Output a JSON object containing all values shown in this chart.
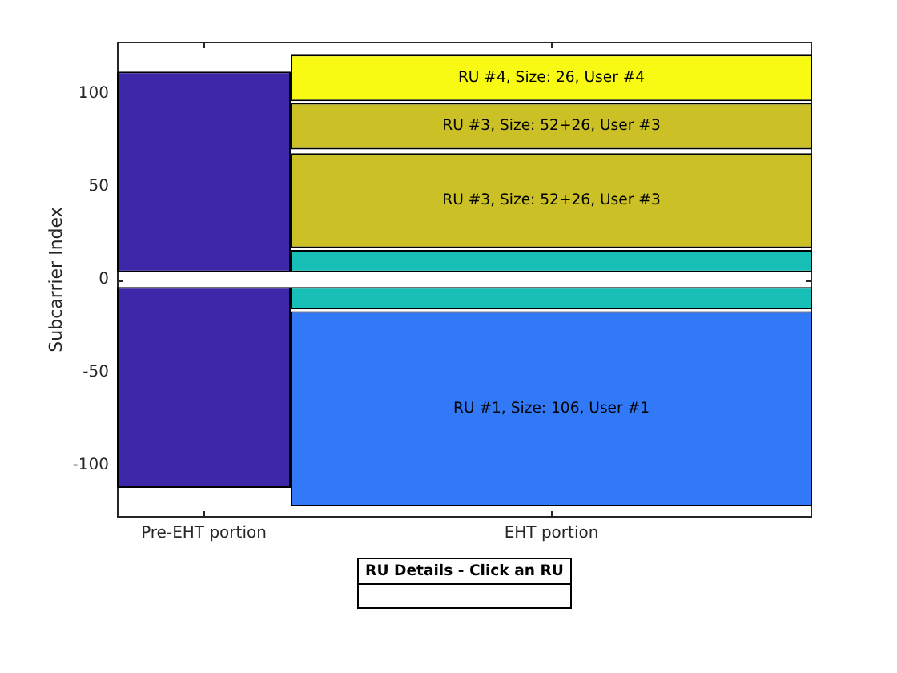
{
  "chart_data": {
    "type": "bar",
    "ylabel": "Subcarrier Index",
    "categories": [
      "Pre-EHT portion",
      "EHT portion"
    ],
    "series": [
      {
        "color": "#3e26a8",
        "base": [
          -112,
          null
        ],
        "values": [
          108,
          null
        ]
      },
      {
        "color": "#3e26a8",
        "base": [
          4,
          null
        ],
        "values": [
          108,
          null
        ]
      },
      {
        "name": "RU #1, Size: 106, User #1",
        "color": "#3279f7",
        "base": [
          null,
          -122
        ],
        "values": [
          null,
          105
        ]
      },
      {
        "color": "#17bfb6",
        "base": [
          null,
          -16
        ],
        "values": [
          null,
          12
        ]
      },
      {
        "color": "#17bfb6",
        "base": [
          null,
          4
        ],
        "values": [
          null,
          12
        ]
      },
      {
        "name": "RU #3, Size: 52+26, User #3",
        "color": "#cbc026",
        "base": [
          null,
          17
        ],
        "values": [
          null,
          51
        ]
      },
      {
        "name": "RU #3, Size: 52+26, User #3",
        "color": "#cbc026",
        "base": [
          null,
          70
        ],
        "values": [
          null,
          25
        ]
      },
      {
        "name": "RU #4, Size: 26, User #4",
        "color": "#f9fa14",
        "base": [
          null,
          96
        ],
        "values": [
          null,
          25
        ]
      }
    ],
    "ylim": [
      -128,
      128
    ],
    "yticks": [
      -100,
      -50,
      0,
      50,
      100
    ],
    "grid": false,
    "legend": false,
    "annotations": [
      "RU Details - Click an RU"
    ]
  }
}
